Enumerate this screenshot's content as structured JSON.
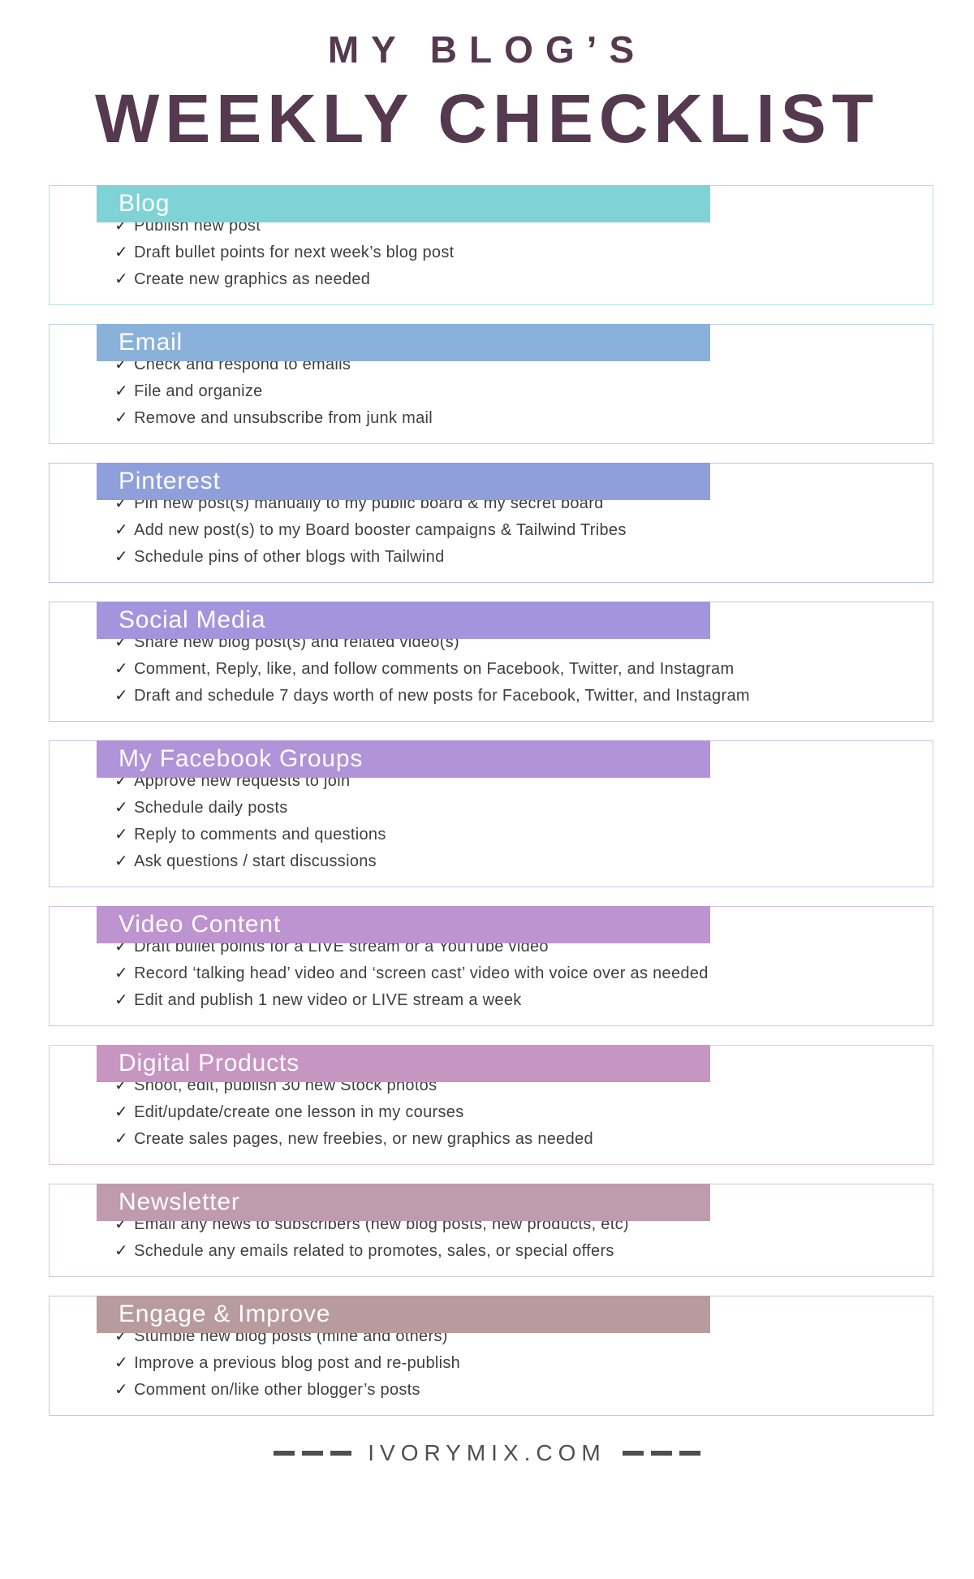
{
  "title": {
    "line1": "MY BLOG’S",
    "line2": "WEEKLY CHECKLIST"
  },
  "icons": {
    "checkmark": "✓"
  },
  "colors": {
    "title_text": "#54394f",
    "body_text": "#3f3f3f",
    "footer_text": "#4f4f4f",
    "header_text": "#ffffff"
  },
  "sections": [
    {
      "label": "Blog",
      "color": "#7fd3d6",
      "border_color": "#aee2e4",
      "items": [
        "Publish new post",
        "Draft bullet points for next week’s blog post",
        "Create new graphics as needed"
      ]
    },
    {
      "label": "Email",
      "color": "#8ab1d9",
      "border_color": "#b9cfe8",
      "items": [
        "Check and respond to emails",
        "File and organize",
        "Remove and unsubscribe from junk mail"
      ]
    },
    {
      "label": "Pinterest",
      "color": "#8f9fdb",
      "border_color": "#bcc5ec",
      "items": [
        "Pin new post(s) manually to my public board & my secret board",
        "Add new post(s) to my Board booster campaigns & Tailwind Tribes",
        "Schedule pins of other blogs with Tailwind"
      ]
    },
    {
      "label": "Social Media",
      "color": "#a295de",
      "border_color": "#c8bfee",
      "items": [
        "Share new blog post(s) and related video(s)",
        "Comment, Reply, like, and follow comments on Facebook, Twitter, and Instagram",
        "Draft and schedule 7 days worth of new posts for Facebook, Twitter, and Instagram"
      ]
    },
    {
      "label": "My Facebook Groups",
      "color": "#b093d8",
      "border_color": "#d2c0eb",
      "items": [
        "Approve new requests to join",
        "Schedule daily posts",
        "Reply to comments and questions",
        "Ask questions / start discussions"
      ]
    },
    {
      "label": "Video Content",
      "color": "#bd93d0",
      "border_color": "#dcc2e3",
      "items": [
        "Draft bullet points for a LIVE stream or a YouTube video",
        "Record ‘talking head’ video and ‘screen cast’ video with voice over as needed",
        "Edit and publish 1 new video or LIVE stream a week"
      ]
    },
    {
      "label": "Digital Products",
      "color": "#c795c2",
      "border_color": "#e0c3db",
      "items": [
        "Shoot, edit, publish 30 new Stock photos",
        "Edit/update/create one lesson in my courses",
        "Create sales pages, new freebies, or new graphics as needed"
      ]
    },
    {
      "label": "Newsletter",
      "color": "#c09aae",
      "border_color": "#dbc4cf",
      "items": [
        "Email any news to subscribers (new blog posts, new products, etc)",
        "Schedule any emails related to promotes, sales, or special offers"
      ]
    },
    {
      "label": "Engage & Improve",
      "color": "#b89b9e",
      "border_color": "#d6c5c7",
      "items": [
        "Stumble new blog posts (mine and others)",
        "Improve a previous blog post and re-publish",
        "Comment on/like other blogger’s posts"
      ]
    }
  ],
  "footer": {
    "site": "IVORYMIX.COM"
  }
}
